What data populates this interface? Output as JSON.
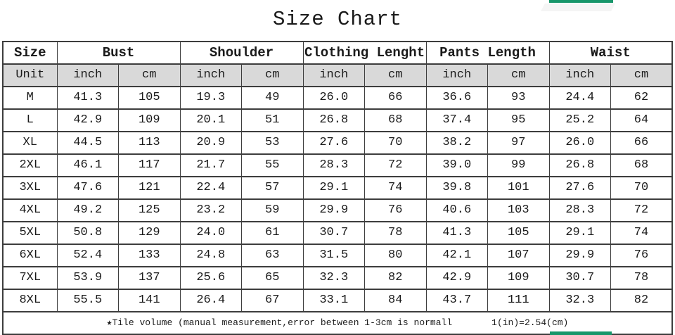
{
  "title": "Size Chart",
  "colors": {
    "accent_green": "#17966a",
    "unit_row_bg": "#d9d9d9",
    "border": "#3d3d3d",
    "text": "#1a1a1a"
  },
  "chart_data": {
    "type": "table",
    "title": "Size Chart",
    "column_groups": [
      {
        "label": "Size",
        "span": 1
      },
      {
        "label": "Bust",
        "span": 2
      },
      {
        "label": "Shoulder",
        "span": 2
      },
      {
        "label": "Clothing Lenght",
        "span": 2
      },
      {
        "label": "Pants Length",
        "span": 2
      },
      {
        "label": "Waist",
        "span": 2
      }
    ],
    "unit_row": [
      "Unit",
      "inch",
      "cm",
      "inch",
      "cm",
      "inch",
      "cm",
      "inch",
      "cm",
      "inch",
      "cm"
    ],
    "rows": [
      [
        "M",
        "41.3",
        "105",
        "19.3",
        "49",
        "26.0",
        "66",
        "36.6",
        "93",
        "24.4",
        "62"
      ],
      [
        "L",
        "42.9",
        "109",
        "20.1",
        "51",
        "26.8",
        "68",
        "37.4",
        "95",
        "25.2",
        "64"
      ],
      [
        "XL",
        "44.5",
        "113",
        "20.9",
        "53",
        "27.6",
        "70",
        "38.2",
        "97",
        "26.0",
        "66"
      ],
      [
        "2XL",
        "46.1",
        "117",
        "21.7",
        "55",
        "28.3",
        "72",
        "39.0",
        "99",
        "26.8",
        "68"
      ],
      [
        "3XL",
        "47.6",
        "121",
        "22.4",
        "57",
        "29.1",
        "74",
        "39.8",
        "101",
        "27.6",
        "70"
      ],
      [
        "4XL",
        "49.2",
        "125",
        "23.2",
        "59",
        "29.9",
        "76",
        "40.6",
        "103",
        "28.3",
        "72"
      ],
      [
        "5XL",
        "50.8",
        "129",
        "24.0",
        "61",
        "30.7",
        "78",
        "41.3",
        "105",
        "29.1",
        "74"
      ],
      [
        "6XL",
        "52.4",
        "133",
        "24.8",
        "63",
        "31.5",
        "80",
        "42.1",
        "107",
        "29.9",
        "76"
      ],
      [
        "7XL",
        "53.9",
        "137",
        "25.6",
        "65",
        "32.3",
        "82",
        "42.9",
        "109",
        "30.7",
        "78"
      ],
      [
        "8XL",
        "55.5",
        "141",
        "26.4",
        "67",
        "33.1",
        "84",
        "43.7",
        "111",
        "32.3",
        "82"
      ]
    ]
  },
  "footer": {
    "note": "★Tile volume (manual measurement,error between 1-3cm is normall",
    "conversion": "1(in)=2.54(cm)"
  }
}
